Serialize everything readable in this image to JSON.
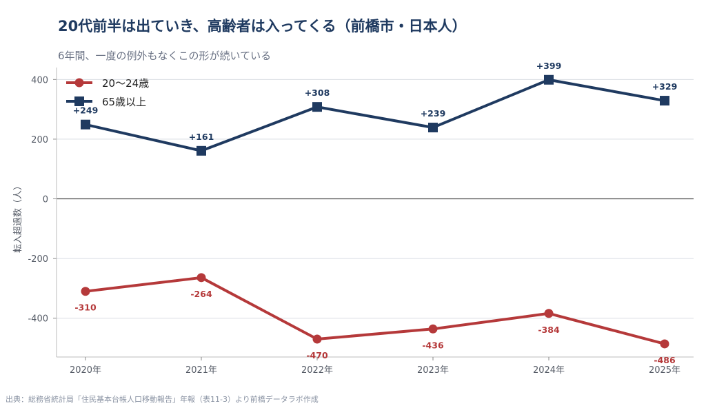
{
  "title": "20代前半は出ていき、高齢者は入ってくる（前橋市・日本人）",
  "subtitle": "6年間、一度の例外もなくこの形が続いている",
  "source": "出典：総務省統計局「住民基本台帳人口移動報告」年報（表11-3）より前橋データラボ作成",
  "colors": {
    "young": "#b5393a",
    "senior": "#1f3a60",
    "grid": "#d9dde3",
    "zero": "#444444"
  },
  "chart_data": {
    "type": "line",
    "categories": [
      "2020年",
      "2021年",
      "2022年",
      "2023年",
      "2024年",
      "2025年"
    ],
    "ylabel": "転入超過数（人）",
    "ylim": [
      -530,
      440
    ],
    "yticks": [
      400,
      200,
      0,
      -200,
      -400
    ],
    "grid": true,
    "legend_position": "top-left",
    "series": [
      {
        "name": "20〜24歳",
        "marker": "circle",
        "values": [
          -310,
          -264,
          -470,
          -436,
          -384,
          -486
        ],
        "labels": [
          "-310",
          "-264",
          "-470",
          "-436",
          "-384",
          "-486"
        ]
      },
      {
        "name": "65歳以上",
        "marker": "square",
        "values": [
          249,
          161,
          308,
          239,
          399,
          329
        ],
        "labels": [
          "+249",
          "+161",
          "+308",
          "+239",
          "+399",
          "+329"
        ]
      }
    ]
  }
}
